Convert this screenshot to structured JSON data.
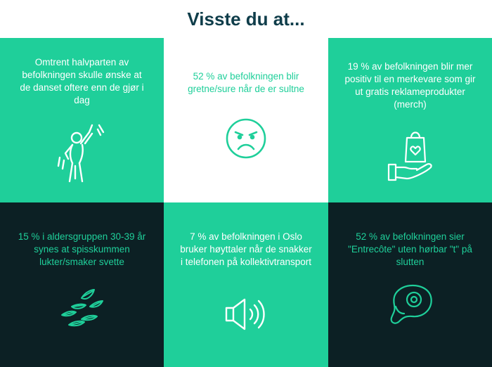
{
  "title": "Visste du at...",
  "facts": [
    {
      "text": "Omtrent halvparten av befolkningen skulle ønske at de danset oftere enn de gjør i dag",
      "icon": "dancing-person-icon"
    },
    {
      "text": "52 % av befolkningen blir gretne/sure når de er sultne",
      "icon": "angry-face-icon"
    },
    {
      "text": "19 % av befolkningen blir mer positiv til en merkevare som gir ut gratis reklameprodukter (merch)",
      "icon": "gift-bag-hand-icon"
    },
    {
      "text": "15 % i aldersgruppen 30-39 år synes at spisskummen lukter/smaker svette",
      "icon": "cumin-seeds-icon"
    },
    {
      "text": "7 % av befolkningen i Oslo bruker høyttaler når de snakker i telefonen på kollektivtransport",
      "icon": "speaker-icon"
    },
    {
      "text": "52 % av befolkningen sier \"Entrecôte\" uten hørbar \"t\" på slutten",
      "icon": "steak-icon"
    }
  ],
  "colors": {
    "mint": "#1fcf9a",
    "dark": "#0c2024",
    "title": "#0f3d4a",
    "white": "#ffffff"
  }
}
